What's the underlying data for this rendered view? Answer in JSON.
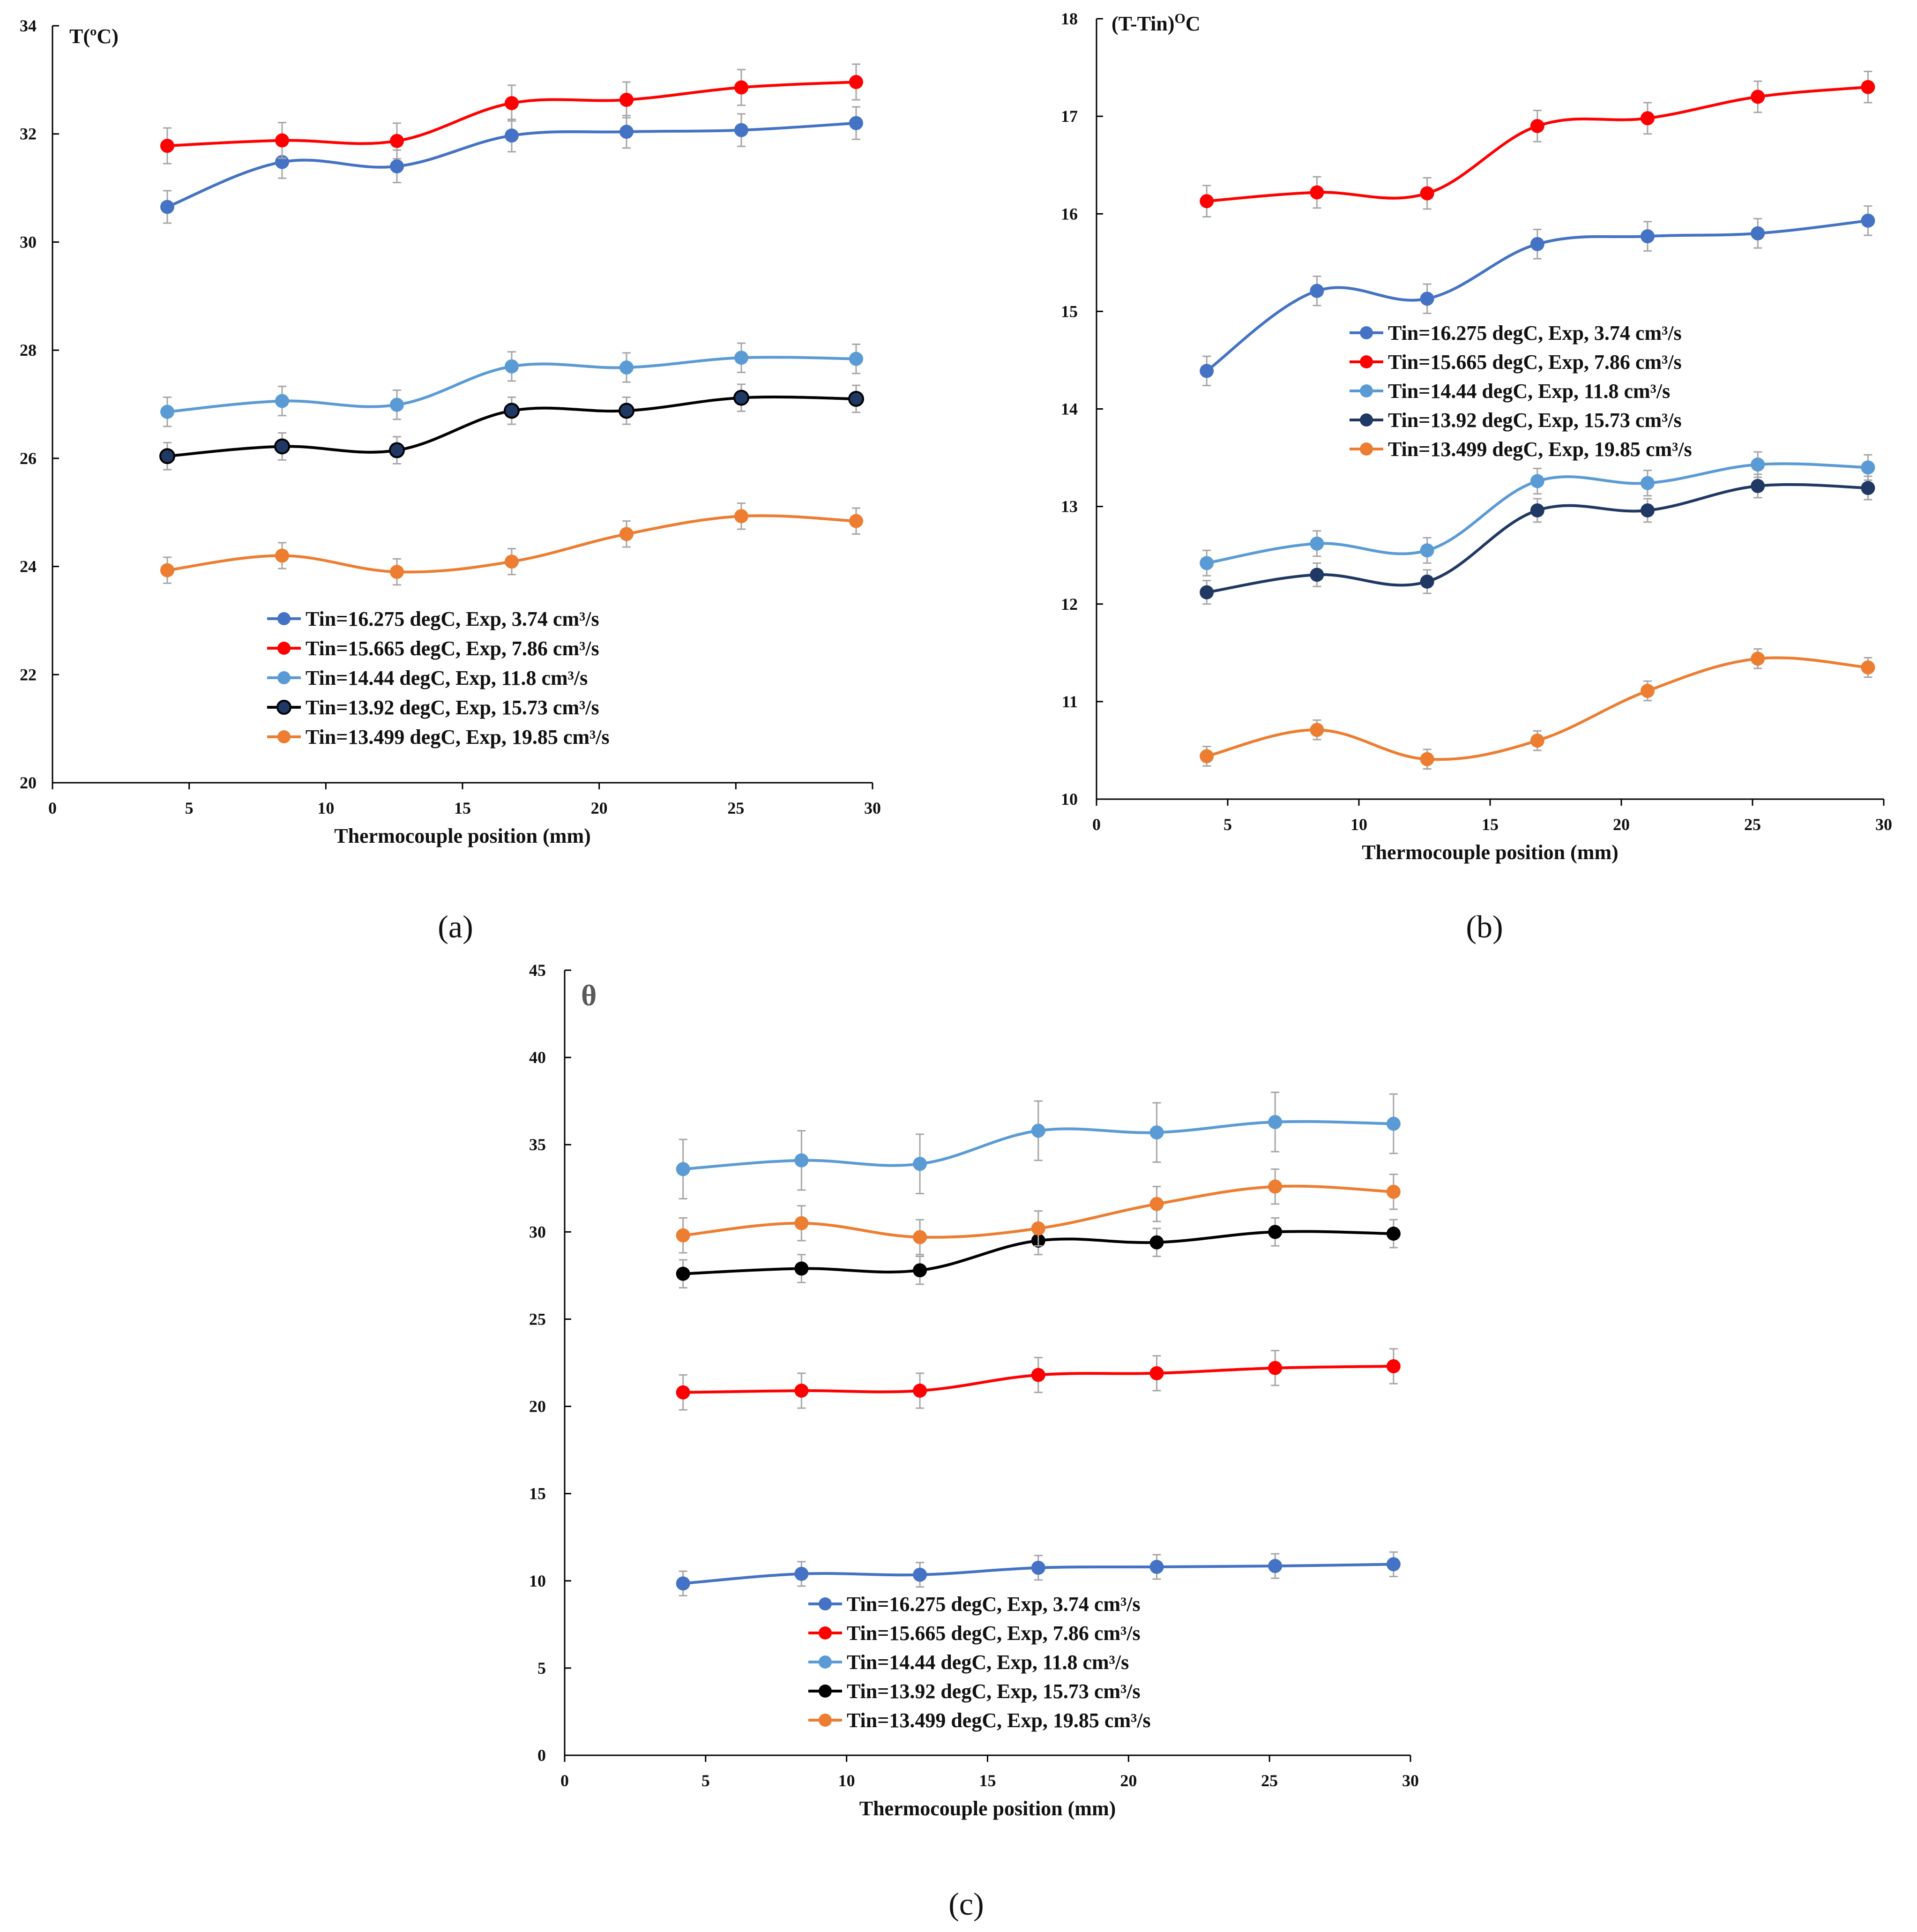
{
  "colors": {
    "s1": "#4472C4",
    "s2": "#FF0000",
    "s3": "#5B9BD5",
    "s4": "#1F3864",
    "s5": "#ED7D31",
    "err": "#A6A6A6"
  },
  "chart_data": [
    {
      "id": "a",
      "type": "line",
      "panel_label": "(a)",
      "ylabel": "T(ºC)",
      "xlabel": "Thermocouple position (mm)",
      "xlim": [
        0,
        30
      ],
      "ylim": [
        20,
        34
      ],
      "xticks": [
        "0",
        "5",
        "10",
        "15",
        "20",
        "25",
        "30"
      ],
      "yticks": [
        "20",
        "22",
        "24",
        "26",
        "28",
        "30",
        "32",
        "34"
      ],
      "legend_position": "lower-center",
      "x": [
        4.2,
        8.4,
        12.6,
        16.8,
        21.0,
        25.2,
        29.4
      ],
      "series": [
        {
          "name": "Tin=16.275 degC, Exp, 3.74 cm³/s",
          "values": [
            30.65,
            31.48,
            31.4,
            31.97,
            32.04,
            32.07,
            32.2
          ],
          "error": 0.3
        },
        {
          "name": "Tin=15.665 degC, Exp, 7.86 cm³/s",
          "values": [
            31.78,
            31.88,
            31.87,
            32.57,
            32.63,
            32.86,
            32.96
          ],
          "error": 0.33
        },
        {
          "name": "Tin=14.44 degC, Exp, 11.8 cm³/s",
          "values": [
            26.86,
            27.06,
            26.99,
            27.7,
            27.68,
            27.86,
            27.84
          ],
          "error": 0.27
        },
        {
          "name": "Tin=13.92 degC, Exp, 15.73 cm³/s",
          "values": [
            26.04,
            26.22,
            26.15,
            26.88,
            26.88,
            27.12,
            27.1
          ],
          "error": 0.25
        },
        {
          "name": "Tin=13.499 degC, Exp, 19.85 cm³/s",
          "values": [
            23.93,
            24.2,
            23.9,
            24.09,
            24.6,
            24.93,
            24.84
          ],
          "error": 0.24
        }
      ]
    },
    {
      "id": "b",
      "type": "line",
      "panel_label": "(b)",
      "ylabel": "(T-Tin)ᴼᶜ",
      "ylabel_main": "(T-Tin)",
      "ylabel_sup": "O",
      "ylabel_tail": "C",
      "xlabel": "Thermocouple position (mm)",
      "xlim": [
        0,
        30
      ],
      "ylim": [
        10,
        18
      ],
      "xticks": [
        "0",
        "5",
        "10",
        "15",
        "20",
        "25",
        "30"
      ],
      "yticks": [
        "10",
        "11",
        "12",
        "13",
        "14",
        "15",
        "16",
        "17",
        "18"
      ],
      "legend_position": "middle-left",
      "x": [
        4.2,
        8.4,
        12.6,
        16.8,
        21.0,
        25.2,
        29.4
      ],
      "series": [
        {
          "name": "Tin=16.275 degC, Exp, 3.74 cm³/s",
          "values": [
            14.39,
            15.21,
            15.13,
            15.69,
            15.77,
            15.8,
            15.93
          ],
          "error": 0.15
        },
        {
          "name": "Tin=15.665 degC, Exp, 7.86 cm³/s",
          "values": [
            16.13,
            16.22,
            16.21,
            16.9,
            16.98,
            17.2,
            17.3
          ],
          "error": 0.16
        },
        {
          "name": "Tin=14.44 degC, Exp, 11.8 cm³/s",
          "values": [
            12.42,
            12.62,
            12.55,
            13.26,
            13.24,
            13.43,
            13.4
          ],
          "error": 0.13
        },
        {
          "name": "Tin=13.92 degC, Exp, 15.73 cm³/s",
          "values": [
            12.12,
            12.3,
            12.23,
            12.96,
            12.96,
            13.21,
            13.19
          ],
          "error": 0.12
        },
        {
          "name": "Tin=13.499 degC, Exp, 19.85 cm³/s",
          "values": [
            10.44,
            10.71,
            10.41,
            10.6,
            11.11,
            11.44,
            11.35
          ],
          "error": 0.1
        }
      ]
    },
    {
      "id": "c",
      "type": "line",
      "panel_label": "(c)",
      "ylabel": "θ",
      "xlabel": "Thermocouple position (mm)",
      "xlim": [
        0,
        30
      ],
      "ylim": [
        0,
        45
      ],
      "xticks": [
        "0",
        "5",
        "10",
        "15",
        "20",
        "25",
        "30"
      ],
      "yticks": [
        "0",
        "5",
        "10",
        "15",
        "20",
        "25",
        "30",
        "35",
        "40",
        "45"
      ],
      "legend_position": "lower-center",
      "x": [
        4.2,
        8.4,
        12.6,
        16.8,
        21.0,
        25.2,
        29.4
      ],
      "series": [
        {
          "name": "Tin=16.275 degC, Exp, 3.74 cm³/s",
          "values": [
            9.85,
            10.4,
            10.35,
            10.75,
            10.8,
            10.85,
            10.95
          ],
          "error": 0.7
        },
        {
          "name": "Tin=15.665 degC, Exp, 7.86 cm³/s",
          "values": [
            20.8,
            20.9,
            20.9,
            21.8,
            21.9,
            22.2,
            22.3
          ],
          "error": 1.0
        },
        {
          "name": "Tin=14.44 degC, Exp, 11.8 cm³/s",
          "values": [
            33.6,
            34.1,
            33.9,
            35.8,
            35.7,
            36.3,
            36.2
          ],
          "error": 1.7
        },
        {
          "name": "Tin=13.92 degC, Exp, 15.73 cm³/s",
          "values": [
            27.6,
            27.9,
            27.8,
            29.5,
            29.4,
            30.0,
            29.9
          ],
          "error": 0.8
        },
        {
          "name": "Tin=13.499 degC, Exp, 19.85 cm³/s",
          "values": [
            29.8,
            30.5,
            29.7,
            30.2,
            31.6,
            32.6,
            32.3
          ],
          "error": 1.0
        }
      ]
    }
  ]
}
